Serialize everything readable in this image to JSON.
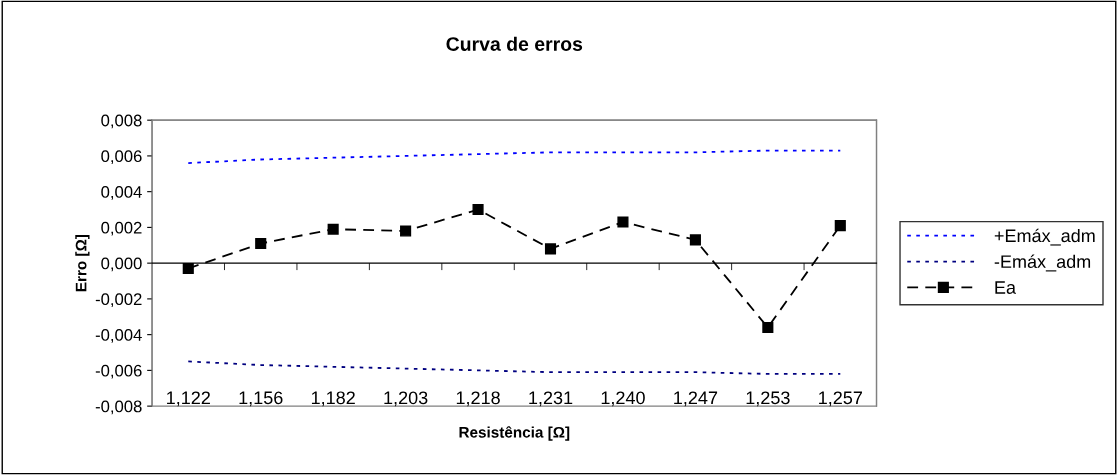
{
  "chart_data": {
    "type": "line",
    "title": "Curva de erros",
    "xlabel": "Resistência [Ω]",
    "ylabel": "Erro [Ω]",
    "categories": [
      "1,122",
      "1,156",
      "1,182",
      "1,203",
      "1,218",
      "1,231",
      "1,240",
      "1,247",
      "1,253",
      "1,257"
    ],
    "series": [
      {
        "name": "+Emáx_adm",
        "color": "#0000ff",
        "line_style": "dotted",
        "marker": "none",
        "values": [
          0.0056,
          0.0058,
          0.0059,
          0.006,
          0.0061,
          0.0062,
          0.0062,
          0.0062,
          0.0063,
          0.0063
        ]
      },
      {
        "name": "-Emáx_adm",
        "color": "#000080",
        "line_style": "dotted",
        "marker": "none",
        "values": [
          -0.0055,
          -0.0057,
          -0.0058,
          -0.0059,
          -0.006,
          -0.0061,
          -0.0061,
          -0.0061,
          -0.0062,
          -0.0062
        ]
      },
      {
        "name": "Ea",
        "color": "#000000",
        "line_style": "dashed",
        "marker": "square",
        "values": [
          -0.0003,
          0.0011,
          0.0019,
          0.0018,
          0.003,
          0.0008,
          0.0023,
          0.0013,
          -0.0036,
          0.0021
        ]
      }
    ],
    "ylim": [
      -0.008,
      0.008
    ],
    "yticks": [
      {
        "value": -0.008,
        "label": "-0,008"
      },
      {
        "value": -0.006,
        "label": "-0,006"
      },
      {
        "value": -0.004,
        "label": "-0,004"
      },
      {
        "value": -0.002,
        "label": "-0,002"
      },
      {
        "value": 0,
        "label": "0,000"
      },
      {
        "value": 0.002,
        "label": "0,002"
      },
      {
        "value": 0.004,
        "label": "0,004"
      },
      {
        "value": 0.006,
        "label": "0,006"
      },
      {
        "value": 0.008,
        "label": "0,008"
      }
    ],
    "ref_lines": [
      {
        "axis": "y",
        "value": 0,
        "color": "#000000"
      }
    ],
    "grid": false,
    "legend": "right"
  }
}
